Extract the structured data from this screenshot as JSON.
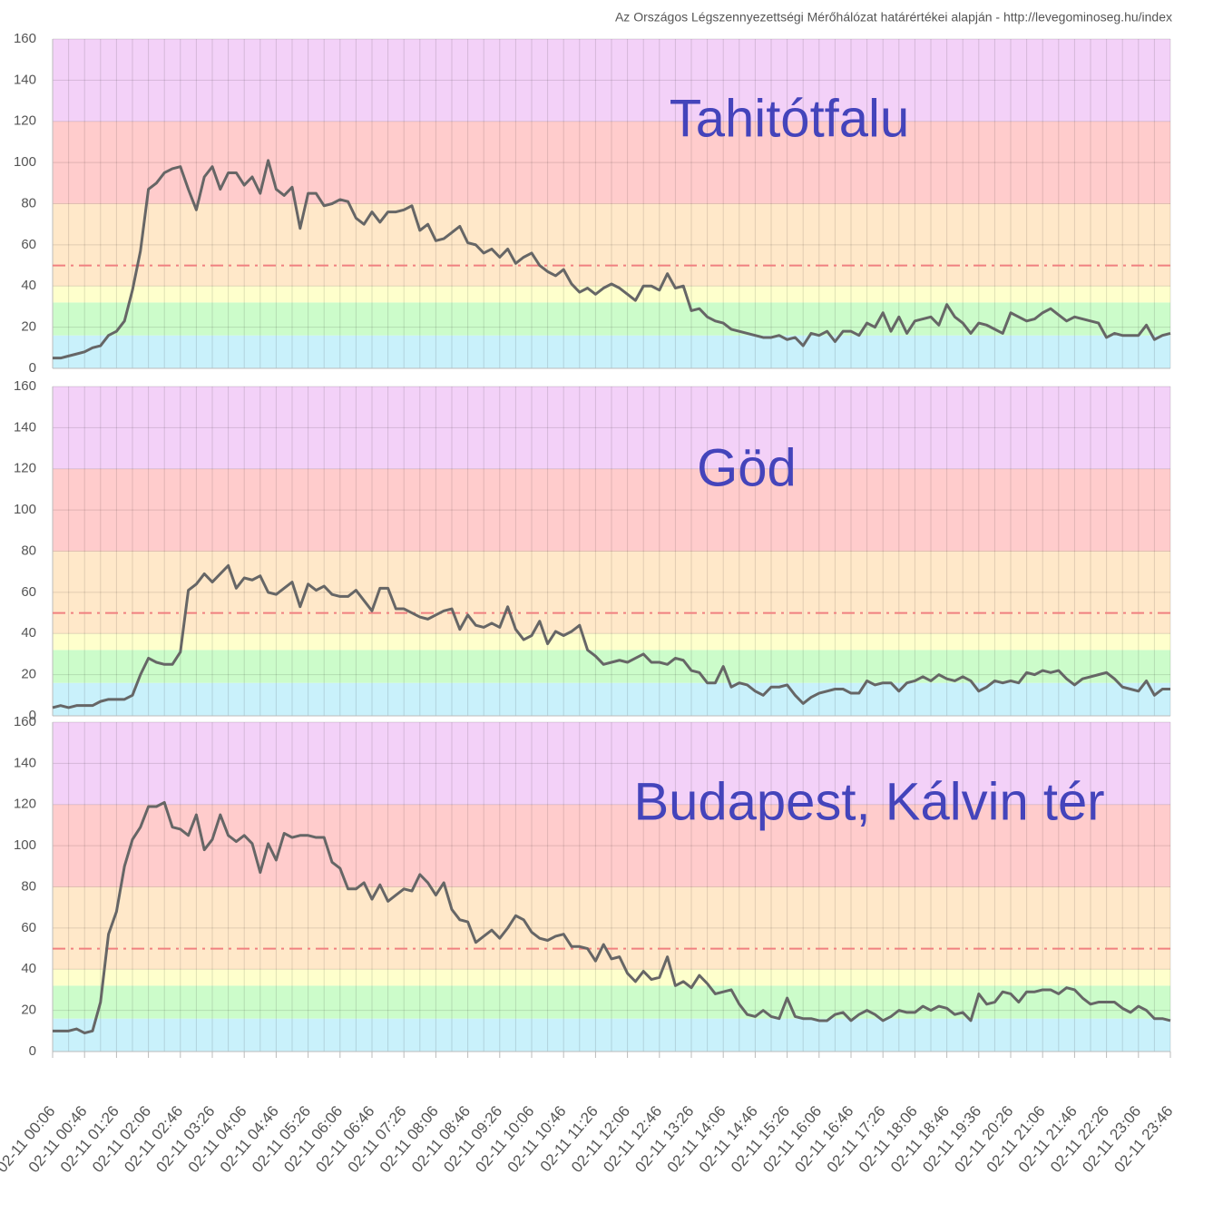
{
  "source": "Az Országos Légszennyezettségi Mérőhálózat határértékei alapján - http://levegominoseg.hu/index",
  "chart_data": [
    {
      "type": "line",
      "title": "Tahitótfalu",
      "color": "#666666",
      "values": [
        5,
        5,
        6,
        7,
        8,
        10,
        11,
        16,
        18,
        23,
        38,
        57,
        87,
        90,
        95,
        97,
        98,
        87,
        77,
        93,
        98,
        87,
        95,
        95,
        89,
        93,
        85,
        101,
        87,
        84,
        88,
        68,
        85,
        85,
        79,
        80,
        82,
        81,
        73,
        70,
        76,
        71,
        76,
        76,
        77,
        79,
        67,
        70,
        62,
        63,
        66,
        69,
        61,
        60,
        56,
        58,
        54,
        58,
        51,
        54,
        56,
        50,
        47,
        45,
        48,
        41,
        37,
        39,
        36,
        39,
        41,
        39,
        36,
        33,
        40,
        40,
        38,
        46,
        39,
        40,
        28,
        29,
        25,
        23,
        22,
        19,
        18,
        17,
        16,
        15,
        15,
        16,
        14,
        15,
        11,
        17,
        16,
        18,
        13,
        18,
        18,
        16,
        22,
        20,
        27,
        18,
        25,
        17,
        23,
        24,
        25,
        21,
        31,
        25,
        22,
        17,
        22,
        21,
        19,
        17,
        27,
        25,
        23,
        24,
        27,
        29,
        26,
        23,
        25,
        24,
        23,
        22,
        15,
        17,
        16,
        16,
        16,
        21,
        14,
        16,
        17
      ],
      "ylim": [
        0,
        160
      ],
      "yticks": [
        0,
        20,
        40,
        60,
        80,
        100,
        120,
        140,
        160
      ],
      "grid": true,
      "bands": [
        {
          "from": 0,
          "to": 16,
          "color": "#c9f1fb"
        },
        {
          "from": 16,
          "to": 32,
          "color": "#ccfcca"
        },
        {
          "from": 32,
          "to": 40,
          "color": "#feffcc"
        },
        {
          "from": 40,
          "to": 80,
          "color": "#ffe8c9"
        },
        {
          "from": 80,
          "to": 120,
          "color": "#ffcccc"
        },
        {
          "from": 120,
          "to": 160,
          "color": "#f3d1f8"
        }
      ],
      "threshold": {
        "value": 50,
        "color": "#f08080"
      }
    },
    {
      "type": "line",
      "title": "Göd",
      "color": "#666666",
      "values": [
        4,
        5,
        4,
        5,
        5,
        5,
        7,
        8,
        8,
        8,
        10,
        20,
        28,
        26,
        25,
        25,
        31,
        61,
        64,
        69,
        65,
        69,
        73,
        62,
        67,
        66,
        68,
        60,
        59,
        62,
        65,
        53,
        64,
        61,
        63,
        59,
        58,
        58,
        61,
        56,
        51,
        62,
        62,
        52,
        52,
        50,
        48,
        47,
        49,
        51,
        52,
        42,
        49,
        44,
        43,
        45,
        43,
        53,
        42,
        37,
        39,
        46,
        35,
        41,
        39,
        41,
        44,
        32,
        29,
        25,
        26,
        27,
        26,
        28,
        30,
        26,
        26,
        25,
        28,
        27,
        22,
        21,
        16,
        16,
        24,
        14,
        16,
        15,
        12,
        10,
        14,
        14,
        15,
        10,
        6,
        9,
        11,
        12,
        13,
        13,
        11,
        11,
        17,
        15,
        16,
        16,
        12,
        16,
        17,
        19,
        17,
        20,
        18,
        17,
        19,
        17,
        12,
        14,
        17,
        16,
        17,
        16,
        21,
        20,
        22,
        21,
        22,
        18,
        15,
        18,
        19,
        20,
        21,
        18,
        14,
        13,
        12,
        17,
        10,
        13,
        13
      ],
      "ylim": [
        0,
        160
      ],
      "yticks": [
        0,
        20,
        40,
        60,
        80,
        100,
        120,
        140,
        160
      ],
      "grid": true,
      "bands": [
        {
          "from": 0,
          "to": 16,
          "color": "#c9f1fb"
        },
        {
          "from": 16,
          "to": 32,
          "color": "#ccfcca"
        },
        {
          "from": 32,
          "to": 40,
          "color": "#feffcc"
        },
        {
          "from": 40,
          "to": 80,
          "color": "#ffe8c9"
        },
        {
          "from": 80,
          "to": 120,
          "color": "#ffcccc"
        },
        {
          "from": 120,
          "to": 160,
          "color": "#f3d1f8"
        }
      ],
      "threshold": {
        "value": 50,
        "color": "#f08080"
      }
    },
    {
      "type": "line",
      "title": "Budapest, Kálvin tér",
      "color": "#666666",
      "values": [
        10,
        10,
        10,
        11,
        9,
        10,
        24,
        57,
        68,
        90,
        103,
        109,
        119,
        119,
        121,
        109,
        108,
        105,
        115,
        98,
        103,
        115,
        105,
        102,
        105,
        101,
        87,
        101,
        93,
        106,
        104,
        105,
        105,
        104,
        104,
        92,
        89,
        79,
        79,
        82,
        74,
        81,
        73,
        76,
        79,
        78,
        86,
        82,
        76,
        82,
        69,
        64,
        63,
        53,
        56,
        59,
        55,
        60,
        66,
        64,
        58,
        55,
        54,
        56,
        57,
        51,
        51,
        50,
        44,
        52,
        45,
        46,
        38,
        34,
        39,
        35,
        36,
        46,
        32,
        34,
        31,
        37,
        33,
        28,
        29,
        30,
        23,
        18,
        17,
        20,
        17,
        16,
        26,
        17,
        16,
        16,
        15,
        15,
        18,
        19,
        15,
        18,
        20,
        18,
        15,
        17,
        20,
        19,
        19,
        22,
        20,
        22,
        21,
        18,
        19,
        15,
        28,
        23,
        24,
        29,
        28,
        24,
        29,
        29,
        30,
        30,
        28,
        31,
        30,
        26,
        23,
        24,
        24,
        24,
        21,
        19,
        22,
        20,
        16,
        16,
        15
      ],
      "categories": [
        "02-11 00:06",
        null,
        null,
        null,
        "02-11 00:46",
        null,
        null,
        null,
        "02-11 01:26",
        null,
        null,
        null,
        "02-11 02:06",
        null,
        null,
        null,
        "02-11 02:46",
        null,
        null,
        null,
        "02-11 03:26",
        null,
        null,
        null,
        "02-11 04:06",
        null,
        null,
        null,
        "02-11 04:46",
        null,
        null,
        null,
        "02-11 05:26",
        null,
        null,
        null,
        "02-11 06:06",
        null,
        null,
        null,
        "02-11 06:46",
        null,
        null,
        null,
        "02-11 07:26",
        null,
        null,
        null,
        "02-11 08:06",
        null,
        null,
        null,
        "02-11 08:46",
        null,
        null,
        null,
        "02-11 09:26",
        null,
        null,
        null,
        "02-11 10:06",
        null,
        null,
        null,
        "02-11 10:46",
        null,
        null,
        null,
        "02-11 11:26",
        null,
        null,
        null,
        "02-11 12:06",
        null,
        null,
        null,
        "02-11 12:46",
        null,
        null,
        null,
        "02-11 13:26",
        null,
        null,
        null,
        "02-11 14:06",
        null,
        null,
        null,
        "02-11 14:46",
        null,
        null,
        null,
        "02-11 15:26",
        null,
        null,
        null,
        "02-11 16:06",
        null,
        null,
        null,
        "02-11 16:46",
        null,
        null,
        null,
        "02-11 17:26",
        null,
        null,
        null,
        "02-11 18:06",
        null,
        null,
        null,
        "02-11 18:46",
        null,
        null,
        null,
        "02-11 19:36",
        null,
        null,
        null,
        "02-11 20:26",
        null,
        null,
        null,
        "02-11 21:06",
        null,
        null,
        null,
        "02-11 21:46",
        null,
        null,
        null,
        "02-11 22:26",
        null,
        null,
        null,
        "02-11 23:06",
        null,
        null,
        null,
        "02-11 23:46"
      ],
      "ylim": [
        0,
        160
      ],
      "yticks": [
        0,
        20,
        40,
        60,
        80,
        100,
        120,
        140,
        160
      ],
      "grid": true,
      "bands": [
        {
          "from": 0,
          "to": 16,
          "color": "#c9f1fb"
        },
        {
          "from": 16,
          "to": 32,
          "color": "#ccfcca"
        },
        {
          "from": 32,
          "to": 40,
          "color": "#feffcc"
        },
        {
          "from": 40,
          "to": 80,
          "color": "#ffe8c9"
        },
        {
          "from": 80,
          "to": 120,
          "color": "#ffcccc"
        },
        {
          "from": 120,
          "to": 160,
          "color": "#f3d1f8"
        }
      ],
      "threshold": {
        "value": 50,
        "color": "#f08080"
      }
    }
  ]
}
